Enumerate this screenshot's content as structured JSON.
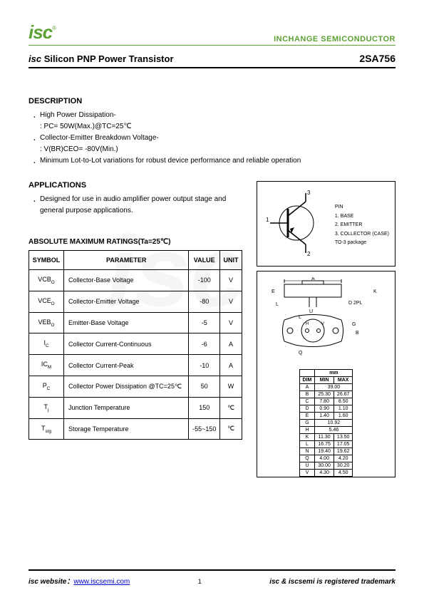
{
  "header": {
    "logo_text": "isc",
    "logo_reg": "®",
    "company": "INCHANGE SEMICONDUCTOR"
  },
  "title": {
    "isc": "isc",
    "rest": " Silicon PNP Power Transistor",
    "part_number": "2SA756"
  },
  "description": {
    "heading": "DESCRIPTION",
    "items": [
      {
        "main": "High Power Dissipation-",
        "sub": ": PC= 50W(Max.)@TC=25℃"
      },
      {
        "main": "Collector-Emitter Breakdown Voltage-",
        "sub": ": V(BR)CEO= -80V(Min.)"
      },
      {
        "main": "Minimum Lot-to-Lot variations for robust device performance and reliable operation",
        "sub": null
      }
    ]
  },
  "applications": {
    "heading": "APPLICATIONS",
    "items": [
      "Designed for use in audio amplifier power output stage and general purpose applications."
    ]
  },
  "pinout": {
    "pin_heading": "PIN",
    "pins": [
      "1. BASE",
      "2. EMITTER",
      "3. COLLECTOR (CASE)"
    ],
    "pkg": "TO-3 package",
    "labels": {
      "p1": "1",
      "p2": "2",
      "p3": "3"
    }
  },
  "ratings": {
    "heading": "ABSOLUTE MAXIMUM RATINGS(Ta=25℃)",
    "columns": [
      "SYMBOL",
      "PARAMETER",
      "VALUE",
      "UNIT"
    ],
    "rows": [
      {
        "symbol": "VCBO",
        "param": "Collector-Base Voltage",
        "value": "-100",
        "unit": "V"
      },
      {
        "symbol": "VCEO",
        "param": "Collector-Emitter Voltage",
        "value": "-80",
        "unit": "V"
      },
      {
        "symbol": "VEBO",
        "param": "Emitter-Base Voltage",
        "value": "-5",
        "unit": "V"
      },
      {
        "symbol": "IC",
        "param": "Collector Current-Continuous",
        "value": "-6",
        "unit": "A"
      },
      {
        "symbol": "ICM",
        "param": "Collector Current-Peak",
        "value": "-10",
        "unit": "A"
      },
      {
        "symbol": "PC",
        "param": "Collector Power Dissipation @TC=25℃",
        "value": "50",
        "unit": "W"
      },
      {
        "symbol": "Tj",
        "param": "Junction Temperature",
        "value": "150",
        "unit": "℃"
      },
      {
        "symbol": "Tstg",
        "param": "Storage Temperature",
        "value": "-55~150",
        "unit": "℃"
      }
    ]
  },
  "dimensions": {
    "unit_label": "mm",
    "columns": [
      "DIM",
      "MIN",
      "MAX"
    ],
    "rows": [
      {
        "dim": "A",
        "min": "39.00",
        "max": ""
      },
      {
        "dim": "B",
        "min": "25.30",
        "max": "26.67"
      },
      {
        "dim": "C",
        "min": "7.80",
        "max": "8.50"
      },
      {
        "dim": "D",
        "min": "0.90",
        "max": "1.10"
      },
      {
        "dim": "E",
        "min": "1.40",
        "max": "1.60"
      },
      {
        "dim": "G",
        "min": "10.92",
        "max": ""
      },
      {
        "dim": "H",
        "min": "5.46",
        "max": ""
      },
      {
        "dim": "K",
        "min": "11.30",
        "max": "13.50"
      },
      {
        "dim": "L",
        "min": "16.75",
        "max": "17.05"
      },
      {
        "dim": "N",
        "min": "19.40",
        "max": "19.62"
      },
      {
        "dim": "Q",
        "min": "4.00",
        "max": "4.20"
      },
      {
        "dim": "U",
        "min": "30.00",
        "max": "30.20"
      },
      {
        "dim": "V",
        "min": "4.30",
        "max": "4.50"
      }
    ]
  },
  "footer": {
    "website_label": "isc website：",
    "website_url": "www.iscsemi.com",
    "page": "1",
    "trademark": "isc & iscsemi is registered trademark"
  },
  "watermark": "isc"
}
